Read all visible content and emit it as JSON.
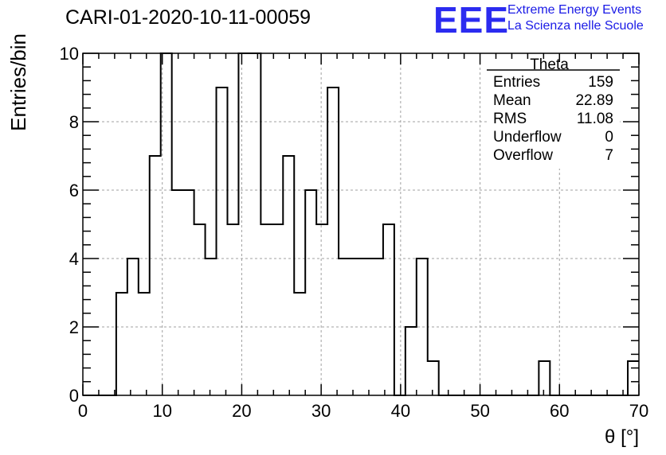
{
  "header": {
    "title": "CARI-01-2020-10-11-00059"
  },
  "logo": {
    "mark": "EEE",
    "line1": "Extreme Energy Events",
    "line2": "La Scienza nelle Scuole",
    "color": "#1a1ae6"
  },
  "chart_data": {
    "type": "bar",
    "histogram": true,
    "xlabel": "θ [°]",
    "ylabel": "Entries/bin",
    "xlim": [
      0,
      70
    ],
    "ylim": [
      0,
      10
    ],
    "xticks": [
      0,
      10,
      20,
      30,
      40,
      50,
      60,
      70
    ],
    "yticks": [
      0,
      2,
      4,
      6,
      8,
      10
    ],
    "grid": true,
    "bin_width": 1.4,
    "bin_edges_start": 0,
    "values": [
      0,
      0,
      0,
      3,
      4,
      3,
      7,
      10,
      6,
      6,
      5,
      4,
      9,
      5,
      10,
      10,
      5,
      5,
      7,
      3,
      6,
      5,
      9,
      4,
      4,
      4,
      4,
      5,
      0,
      2,
      4,
      1,
      0,
      0,
      0,
      0,
      0,
      0,
      0,
      0,
      0,
      1,
      0,
      0,
      0,
      0,
      0,
      0,
      0,
      1
    ],
    "stats": {
      "title": "Theta",
      "rows": [
        {
          "label": "Entries",
          "value": "159"
        },
        {
          "label": "Mean",
          "value": "22.89"
        },
        {
          "label": "RMS",
          "value": "11.08"
        },
        {
          "label": "Underflow",
          "value": "0"
        },
        {
          "label": "Overflow",
          "value": "7"
        }
      ]
    }
  }
}
